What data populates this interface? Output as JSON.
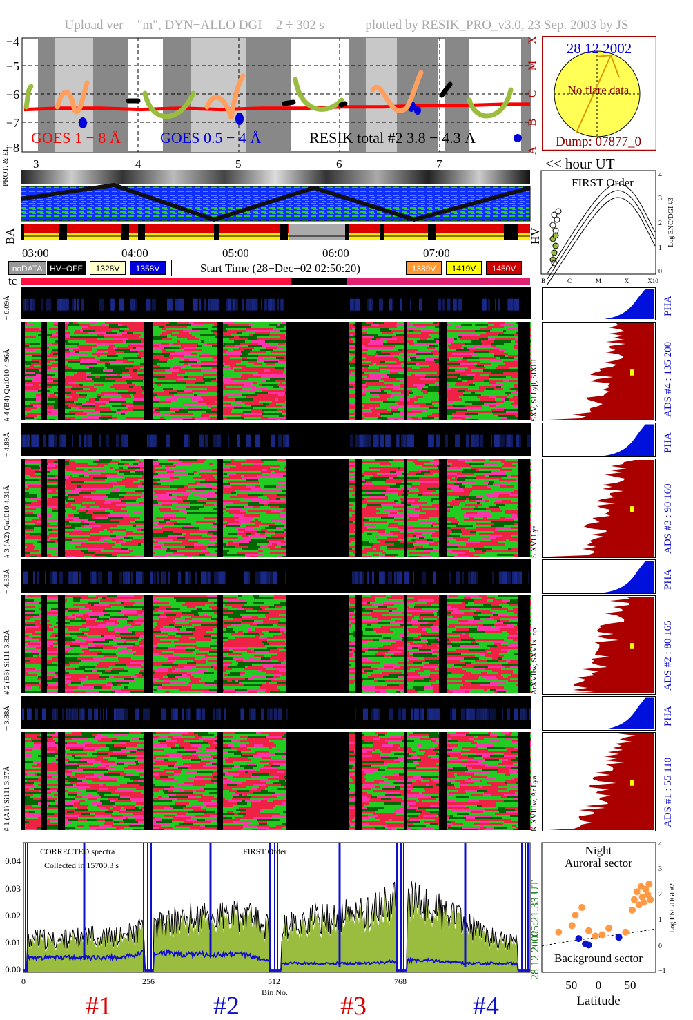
{
  "header": {
    "upload": "Upload ver = \"m\", DYN−ALLO DGI =   2 ÷ 302 s",
    "plotted": "plotted by RESIK_PRO_v3.0, 23 Sep. 2003 by JS"
  },
  "goes_panel": {
    "yticks": [
      "−4",
      "−5",
      "−6",
      "−7",
      "−8"
    ],
    "classes": [
      "X",
      "M",
      "C",
      "B",
      "A"
    ],
    "legend_goes18": "GOES 1 − 8 Å",
    "legend_goes054": "GOES 0.5 − 4 Å",
    "legend_resik": "RESIK total #2  3.8 − 4.3 Å",
    "hour_ticks": [
      "3",
      "4",
      "5",
      "6",
      "7"
    ],
    "hour_label": "<< hour UT",
    "colors": {
      "goes18": "#ff0000",
      "goes054": "#0000dd",
      "resik": "#000000"
    },
    "chart_data": {
      "type": "line",
      "xlabel": "hour UT",
      "ylabel": "",
      "x_range": [
        2.83,
        7.85
      ],
      "ylim": [
        -8.2,
        -3.9
      ],
      "x": [
        2.85,
        3.2,
        3.6,
        4.0,
        4.4,
        4.8,
        5.2,
        5.6,
        6.0,
        6.4,
        6.8,
        7.2,
        7.6,
        7.85
      ],
      "series": [
        {
          "name": "GOES 1 − 8 Å",
          "values": [
            -6.6,
            -6.55,
            -6.55,
            -6.6,
            -6.55,
            -6.6,
            -6.55,
            -6.55,
            -6.5,
            -6.5,
            -6.45,
            -6.45,
            -6.4,
            -6.4
          ]
        }
      ]
    }
  },
  "sun_panel": {
    "date": "28 12 2002",
    "no_flare": "No flare data",
    "dump": "Dump: 07877_0"
  },
  "strips": {
    "prot_label": "PROT. & EL.",
    "ba_label": "BA",
    "hv_label": "HV",
    "time_ticks": [
      "03:00",
      "04:00",
      "05:00",
      "06:00",
      "07:00"
    ]
  },
  "legend_buttons": {
    "nodata": "noDATA",
    "hvoff": "HV−OFF",
    "v1328": "1328V",
    "v1358": "1358V",
    "start_time": "Start Time (28−Dec−02 02:50:20)",
    "v1389": "1389V",
    "v1419": "1419V",
    "v1450": "1450V"
  },
  "first_order": {
    "title": "FIRST Order",
    "xticks": [
      "B",
      "C",
      "M",
      "X",
      "X10"
    ],
    "yticks": [
      "0",
      "1",
      "2",
      "3",
      "4"
    ],
    "ylabel": "Log ENC/DGI #3"
  },
  "tc_label": "tc",
  "channels": [
    {
      "pha_label": "− 6.09Å",
      "main_label": "# 4 (B4) Qu1010  4.96Å",
      "line_label": "SXV, SI Lyβ, SIXIII",
      "ads_label": "ADS #4 :   135 200",
      "pha": "PHA"
    },
    {
      "pha_label": "− 4.89Å",
      "main_label": "# 3 (A2) Qu1010  4.31Å",
      "line_label": "S XVI Lya",
      "ads_label": "ADS #3 :    90 160",
      "pha": "PHA"
    },
    {
      "pha_label": "− 4.33Å",
      "main_label": "# 2 (B3) Si111  3.82Å",
      "line_label": "ArXVIIw, SXV1s−np",
      "ads_label": "ADS #2 :    80 165",
      "pha": "PHA"
    },
    {
      "pha_label": "− 3.88Å",
      "main_label": "# 1 (A1) Si111  3.37Å",
      "line_label": "K XVIIIw, Ar Lya",
      "ads_label": "ADS #1 :    55 110",
      "pha": "PHA"
    }
  ],
  "spectrum": {
    "corrected": "CORRECTED spectra",
    "collected": "Collected in 15700.3 s",
    "first_order": "FIRST Order",
    "yticks": [
      "0.00",
      "0.01",
      "0.02",
      "0.03",
      "0.04"
    ],
    "xticks": [
      "0",
      "256",
      "512",
      "768"
    ],
    "xlabel": "Bin No.",
    "channel_labels": [
      "#1",
      "#2",
      "#3",
      "#4"
    ],
    "channel_colors": [
      "#dd0000",
      "#1010cc",
      "#dd0000",
      "#1010cc"
    ],
    "side_time": "05:21:33 UT",
    "side_date": "28 12 2002",
    "chart_data": {
      "type": "line",
      "xlabel": "Bin No.",
      "ylabel": "",
      "xlim": [
        0,
        1024
      ],
      "ylim": [
        0,
        0.044
      ],
      "series": [
        {
          "name": "",
          "x": [
            0,
            64,
            128,
            192,
            256,
            320,
            384,
            448,
            512,
            576,
            640,
            704,
            768,
            832,
            896,
            960,
            1024
          ],
          "values": [
            0.012,
            0.011,
            0.012,
            0.012,
            0.015,
            0.018,
            0.019,
            0.019,
            0.014,
            0.018,
            0.019,
            0.021,
            0.025,
            0.022,
            0.016,
            0.011,
            0.009
          ]
        },
        {
          "name": "",
          "x": [
            0,
            64,
            128,
            192,
            256,
            320,
            384,
            448,
            512,
            576,
            640,
            704,
            768,
            832,
            896,
            960,
            1024
          ],
          "values": [
            0.005,
            0.005,
            0.005,
            0.005,
            0.007,
            0.006,
            0.006,
            0.006,
            0.003,
            0.003,
            0.003,
            0.003,
            0.004,
            0.004,
            0.003,
            0.003,
            0.003
          ]
        }
      ]
    }
  },
  "orbit": {
    "night": "Night",
    "auroral": "Auroral sector",
    "background": "Background sector",
    "xlabel": "Latitude",
    "xticks": [
      "−50",
      "0",
      "50"
    ],
    "yticks": [
      "−1",
      "0",
      "1",
      "2",
      "3",
      "4"
    ],
    "ylabel": "Log ENC/DGI #2",
    "chart_data": {
      "type": "scatter",
      "xlabel": "Latitude",
      "ylabel": "Log ENC/DGI #2",
      "xlim": [
        -80,
        90
      ],
      "ylim": [
        -1,
        4
      ],
      "series": [
        {
          "name": "",
          "color": "#ff9944",
          "points": [
            [
              -55,
              0.55
            ],
            [
              -35,
              0.8
            ],
            [
              -30,
              1.2
            ],
            [
              -20,
              1.5
            ],
            [
              -10,
              0.6
            ],
            [
              0,
              0.4
            ],
            [
              10,
              0.45
            ],
            [
              20,
              0.7
            ],
            [
              45,
              0.55
            ],
            [
              55,
              1.4
            ],
            [
              58,
              1.8
            ],
            [
              62,
              2.1
            ],
            [
              65,
              1.6
            ],
            [
              68,
              2.3
            ],
            [
              70,
              1.9
            ],
            [
              72,
              1.7
            ],
            [
              75,
              2.2
            ],
            [
              78,
              2.0
            ],
            [
              80,
              2.4
            ],
            [
              82,
              1.8
            ]
          ]
        },
        {
          "name": "",
          "color": "#0a14c8",
          "points": [
            [
              -25,
              0.3
            ],
            [
              -15,
              0.1
            ],
            [
              -10,
              0.05
            ],
            [
              35,
              0.35
            ]
          ]
        }
      ]
    }
  }
}
